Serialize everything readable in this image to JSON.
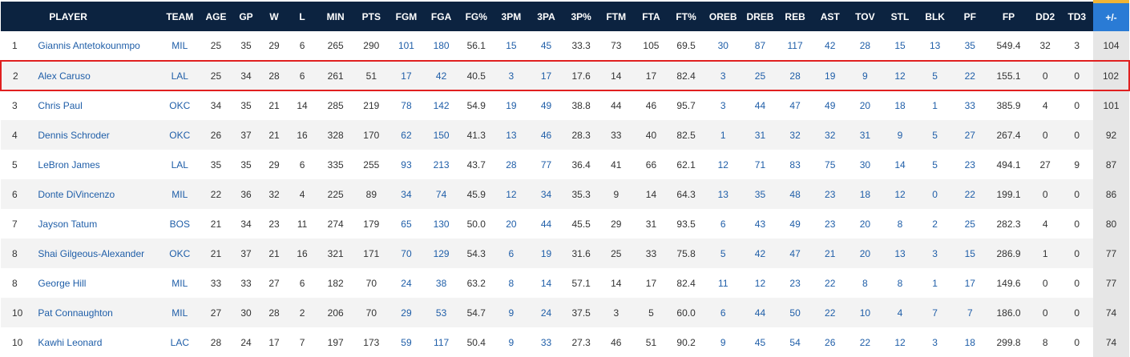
{
  "table": {
    "columns": [
      "",
      "PLAYER",
      "TEAM",
      "AGE",
      "GP",
      "W",
      "L",
      "MIN",
      "PTS",
      "FGM",
      "FGA",
      "FG%",
      "3PM",
      "3PA",
      "3P%",
      "FTM",
      "FTA",
      "FT%",
      "OREB",
      "DREB",
      "REB",
      "AST",
      "TOV",
      "STL",
      "BLK",
      "PF",
      "FP",
      "DD2",
      "TD3",
      "+/-"
    ],
    "link_columns": [
      "PLAYER",
      "TEAM",
      "FGM",
      "FGA",
      "3PM",
      "3PA",
      "OREB",
      "DREB",
      "REB",
      "AST",
      "TOV",
      "STL",
      "BLK",
      "PF"
    ],
    "highlighted_row": 1,
    "colors": {
      "header_bg": "#0c2340",
      "sorted_header_bg": "#2a7bd5",
      "sorted_accent": "#f1b434",
      "link": "#1f5ea8",
      "highlight_border": "#e02020"
    },
    "rows": [
      [
        "1",
        "Giannis Antetokounmpo",
        "MIL",
        "25",
        "35",
        "29",
        "6",
        "265",
        "290",
        "101",
        "180",
        "56.1",
        "15",
        "45",
        "33.3",
        "73",
        "105",
        "69.5",
        "30",
        "87",
        "117",
        "42",
        "28",
        "15",
        "13",
        "35",
        "549.4",
        "32",
        "3",
        "104"
      ],
      [
        "2",
        "Alex Caruso",
        "LAL",
        "25",
        "34",
        "28",
        "6",
        "261",
        "51",
        "17",
        "42",
        "40.5",
        "3",
        "17",
        "17.6",
        "14",
        "17",
        "82.4",
        "3",
        "25",
        "28",
        "19",
        "9",
        "12",
        "5",
        "22",
        "155.1",
        "0",
        "0",
        "102"
      ],
      [
        "3",
        "Chris Paul",
        "OKC",
        "34",
        "35",
        "21",
        "14",
        "285",
        "219",
        "78",
        "142",
        "54.9",
        "19",
        "49",
        "38.8",
        "44",
        "46",
        "95.7",
        "3",
        "44",
        "47",
        "49",
        "20",
        "18",
        "1",
        "33",
        "385.9",
        "4",
        "0",
        "101"
      ],
      [
        "4",
        "Dennis Schroder",
        "OKC",
        "26",
        "37",
        "21",
        "16",
        "328",
        "170",
        "62",
        "150",
        "41.3",
        "13",
        "46",
        "28.3",
        "33",
        "40",
        "82.5",
        "1",
        "31",
        "32",
        "32",
        "31",
        "9",
        "5",
        "27",
        "267.4",
        "0",
        "0",
        "92"
      ],
      [
        "5",
        "LeBron James",
        "LAL",
        "35",
        "35",
        "29",
        "6",
        "335",
        "255",
        "93",
        "213",
        "43.7",
        "28",
        "77",
        "36.4",
        "41",
        "66",
        "62.1",
        "12",
        "71",
        "83",
        "75",
        "30",
        "14",
        "5",
        "23",
        "494.1",
        "27",
        "9",
        "87"
      ],
      [
        "6",
        "Donte DiVincenzo",
        "MIL",
        "22",
        "36",
        "32",
        "4",
        "225",
        "89",
        "34",
        "74",
        "45.9",
        "12",
        "34",
        "35.3",
        "9",
        "14",
        "64.3",
        "13",
        "35",
        "48",
        "23",
        "18",
        "12",
        "0",
        "22",
        "199.1",
        "0",
        "0",
        "86"
      ],
      [
        "7",
        "Jayson Tatum",
        "BOS",
        "21",
        "34",
        "23",
        "11",
        "274",
        "179",
        "65",
        "130",
        "50.0",
        "20",
        "44",
        "45.5",
        "29",
        "31",
        "93.5",
        "6",
        "43",
        "49",
        "23",
        "20",
        "8",
        "2",
        "25",
        "282.3",
        "4",
        "0",
        "80"
      ],
      [
        "8",
        "Shai Gilgeous-Alexander",
        "OKC",
        "21",
        "37",
        "21",
        "16",
        "321",
        "171",
        "70",
        "129",
        "54.3",
        "6",
        "19",
        "31.6",
        "25",
        "33",
        "75.8",
        "5",
        "42",
        "47",
        "21",
        "20",
        "13",
        "3",
        "15",
        "286.9",
        "1",
        "0",
        "77"
      ],
      [
        "8",
        "George Hill",
        "MIL",
        "33",
        "33",
        "27",
        "6",
        "182",
        "70",
        "24",
        "38",
        "63.2",
        "8",
        "14",
        "57.1",
        "14",
        "17",
        "82.4",
        "11",
        "12",
        "23",
        "22",
        "8",
        "8",
        "1",
        "17",
        "149.6",
        "0",
        "0",
        "77"
      ],
      [
        "10",
        "Pat Connaughton",
        "MIL",
        "27",
        "30",
        "28",
        "2",
        "206",
        "70",
        "29",
        "53",
        "54.7",
        "9",
        "24",
        "37.5",
        "3",
        "5",
        "60.0",
        "6",
        "44",
        "50",
        "22",
        "10",
        "4",
        "7",
        "7",
        "186.0",
        "0",
        "0",
        "74"
      ],
      [
        "10",
        "Kawhi Leonard",
        "LAC",
        "28",
        "24",
        "17",
        "7",
        "197",
        "173",
        "59",
        "117",
        "50.4",
        "9",
        "33",
        "27.3",
        "46",
        "51",
        "90.2",
        "9",
        "45",
        "54",
        "26",
        "22",
        "12",
        "3",
        "18",
        "299.8",
        "8",
        "0",
        "74"
      ]
    ]
  }
}
